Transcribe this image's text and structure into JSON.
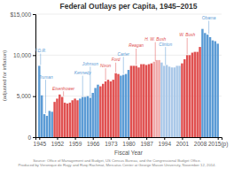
{
  "chart_data": {
    "type": "bar",
    "title": "Federal Outlays per Capita, 1945–2015",
    "x_label": "Fiscal Year",
    "y_label": "(adjusted for inflation)",
    "x": [
      1945,
      1946,
      1947,
      1948,
      1949,
      1950,
      1951,
      1952,
      1953,
      1954,
      1955,
      1956,
      1957,
      1958,
      1959,
      1960,
      1961,
      1962,
      1963,
      1964,
      1965,
      1966,
      1967,
      1968,
      1969,
      1970,
      1971,
      1972,
      1973,
      1974,
      1975,
      1976,
      1977,
      1978,
      1979,
      1980,
      1981,
      1982,
      1983,
      1984,
      1985,
      1986,
      1987,
      1988,
      1989,
      1990,
      1991,
      1992,
      1993,
      1994,
      1995,
      1996,
      1997,
      1998,
      1999,
      2000,
      2001,
      2002,
      2003,
      2004,
      2005,
      2006,
      2007,
      2008,
      2009,
      2010,
      2011,
      2012,
      2013,
      2014,
      2015
    ],
    "values": [
      8700,
      5100,
      2800,
      2600,
      3200,
      3100,
      4300,
      4700,
      5200,
      4900,
      4200,
      4100,
      4200,
      4500,
      4700,
      4500,
      4700,
      4900,
      4900,
      5000,
      4800,
      5400,
      6000,
      6400,
      6200,
      6500,
      6800,
      7000,
      6800,
      7000,
      7800,
      7700,
      7500,
      7600,
      7700,
      8200,
      8700,
      8700,
      8700,
      8500,
      8900,
      8900,
      8800,
      8900,
      9000,
      9200,
      9400,
      9400,
      9100,
      8700,
      8800,
      8600,
      8500,
      8500,
      8700,
      8700,
      9000,
      9500,
      10000,
      10000,
      10300,
      10400,
      10400,
      11000,
      13200,
      12700,
      12500,
      12200,
      11800,
      11700,
      11400
    ],
    "colors": [
      "#5b9bd5",
      "#5b9bd5",
      "#5b9bd5",
      "#5b9bd5",
      "#5b9bd5",
      "#5b9bd5",
      "#e05050",
      "#e05050",
      "#e05050",
      "#e05050",
      "#e05050",
      "#e05050",
      "#e05050",
      "#e05050",
      "#e05050",
      "#e05050",
      "#5b9bd5",
      "#5b9bd5",
      "#5b9bd5",
      "#5b9bd5",
      "#5b9bd5",
      "#5b9bd5",
      "#5b9bd5",
      "#5b9bd5",
      "#e05050",
      "#e05050",
      "#e05050",
      "#e05050",
      "#e05050",
      "#e05050",
      "#e05050",
      "#e05050",
      "#5b9bd5",
      "#5b9bd5",
      "#5b9bd5",
      "#5b9bd5",
      "#e05050",
      "#e05050",
      "#e05050",
      "#e05050",
      "#e05050",
      "#e05050",
      "#e05050",
      "#e05050",
      "#e05050",
      "#f0a8a8",
      "#f0a8a8",
      "#f0a8a8",
      "#aac8e8",
      "#aac8e8",
      "#aac8e8",
      "#aac8e8",
      "#aac8e8",
      "#aac8e8",
      "#aac8e8",
      "#aac8e8",
      "#e05050",
      "#e05050",
      "#e05050",
      "#e05050",
      "#e05050",
      "#e05050",
      "#e05050",
      "#e05050",
      "#5b9bd5",
      "#5b9bd5",
      "#5b9bd5",
      "#5b9bd5",
      "#5b9bd5",
      "#5b9bd5",
      "#5b9bd5"
    ],
    "xlim": [
      1943.5,
      2016.5
    ],
    "xticks": [
      1945,
      1952,
      1959,
      1966,
      1973,
      1980,
      1987,
      1994,
      2001,
      2008,
      {
        "value": 2015,
        "label": "2015(p)"
      }
    ],
    "ylim": [
      0,
      15000
    ],
    "yticks": [
      0,
      {
        "value": 5000,
        "label": "5,000"
      },
      {
        "value": 10000,
        "label": "10,000"
      },
      {
        "value": 15000,
        "label": "$15,000"
      }
    ],
    "grid": true,
    "annotations": [
      {
        "text": "F.D.R.",
        "x": 1945.5,
        "y": 10300,
        "color": "#5b9bd5"
      },
      {
        "text": "Truman",
        "x": 1947.5,
        "y": 7100,
        "color": "#5b9bd5"
      },
      {
        "text": "Eisenhower",
        "x": 1954.5,
        "y": 5700,
        "color": "#e05050"
      },
      {
        "text": "Kennedy",
        "x": 1962.0,
        "y": 7600,
        "color": "#5b9bd5"
      },
      {
        "text": "Johnson",
        "x": 1965.0,
        "y": 8700,
        "color": "#5b9bd5"
      },
      {
        "text": "Nixon",
        "x": 1971.0,
        "y": 8500,
        "color": "#e05050"
      },
      {
        "text": "Ford",
        "x": 1975.0,
        "y": 9200,
        "color": "#e05050"
      },
      {
        "text": "Carter",
        "x": 1978.0,
        "y": 9900,
        "color": "#5b9bd5"
      },
      {
        "text": "Reagan",
        "x": 1983.0,
        "y": 10900,
        "color": "#e05050"
      },
      {
        "text": "H. W. Bush",
        "x": 1990.5,
        "y": 11700,
        "color": "#e05050"
      },
      {
        "text": "Clinton",
        "x": 1994.5,
        "y": 11100,
        "color": "#5b9bd5"
      },
      {
        "text": "W. Bush",
        "x": 2003.0,
        "y": 12200,
        "color": "#e05050"
      },
      {
        "text": "Obama",
        "x": 2011.5,
        "y": 14300,
        "color": "#5b9bd5"
      }
    ],
    "source": [
      "Source: Office of Management and Budget, US Census Bureau, and the Congressional Budget Office.",
      "Produced by Veronique de Rugy and Rizqi Rachmat, Mercatus Center at George Mason University, November 12, 2014."
    ]
  }
}
